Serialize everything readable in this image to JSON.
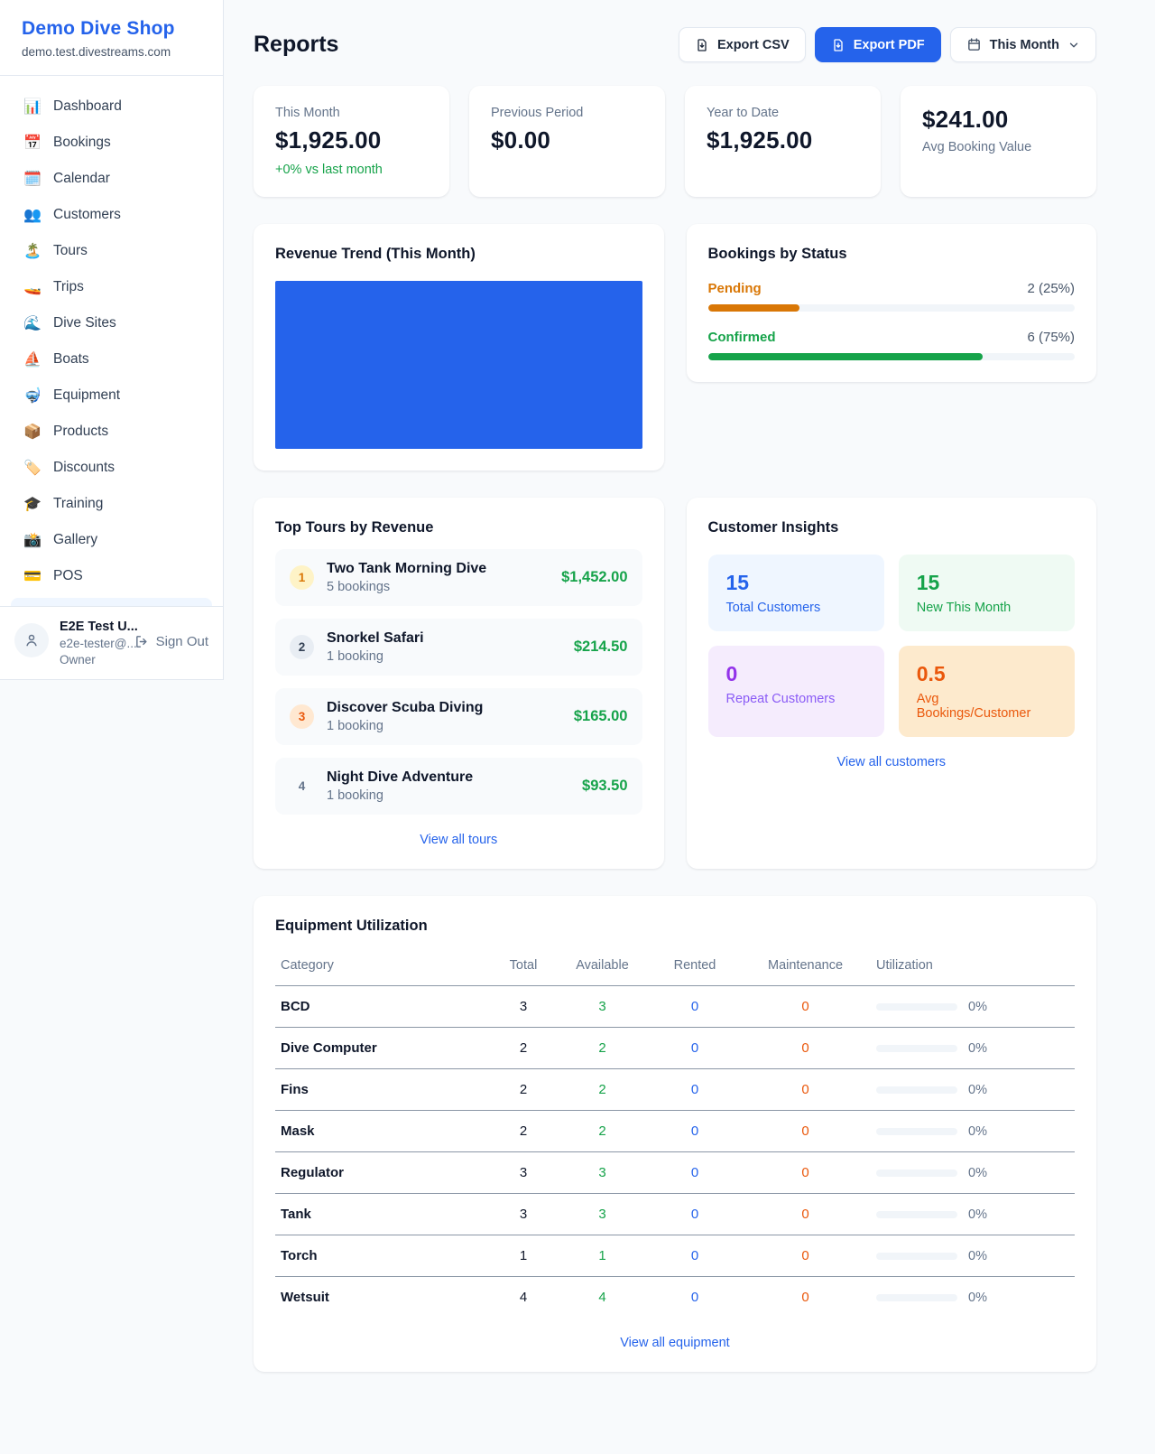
{
  "colors": {
    "accent_blue": "#2563eb",
    "green": "#16a34a",
    "orange_pending": "#d97706",
    "orange_deep": "#ea580c",
    "purple": "#9333ea",
    "page_bg": "#f8fafc"
  },
  "app": {
    "name": "Demo Dive Shop",
    "domain": "demo.test.divestreams.com"
  },
  "sidebar": {
    "items": [
      {
        "label": "Dashboard",
        "icon": "bar-chart-icon",
        "glyph": "📊"
      },
      {
        "label": "Bookings",
        "icon": "calendar-17-icon",
        "glyph": "📅"
      },
      {
        "label": "Calendar",
        "icon": "notepad-icon",
        "glyph": "🗓️"
      },
      {
        "label": "Customers",
        "icon": "people-icon",
        "glyph": "👥"
      },
      {
        "label": "Tours",
        "icon": "island-icon",
        "glyph": "🏝️"
      },
      {
        "label": "Trips",
        "icon": "speedboat-icon",
        "glyph": "🚤"
      },
      {
        "label": "Dive Sites",
        "icon": "wave-icon",
        "glyph": "🌊"
      },
      {
        "label": "Boats",
        "icon": "sailboat-icon",
        "glyph": "⛵"
      },
      {
        "label": "Equipment",
        "icon": "dive-mask-icon",
        "glyph": "🤿"
      },
      {
        "label": "Products",
        "icon": "package-icon",
        "glyph": "📦"
      },
      {
        "label": "Discounts",
        "icon": "tag-icon",
        "glyph": "🏷️"
      },
      {
        "label": "Training",
        "icon": "grad-cap-icon",
        "glyph": "🎓"
      },
      {
        "label": "Gallery",
        "icon": "camera-icon",
        "glyph": "📸"
      },
      {
        "label": "POS",
        "icon": "credit-card-icon",
        "glyph": "💳"
      }
    ],
    "user": {
      "name": "E2E Test U...",
      "email": "e2e-tester@...",
      "role": "Owner",
      "sign_out": "Sign Out"
    }
  },
  "header": {
    "title": "Reports",
    "export_csv": "Export CSV",
    "export_pdf": "Export PDF",
    "period": "This Month"
  },
  "stats": [
    {
      "label": "This Month",
      "value": "$1,925.00",
      "delta": "+0% vs last month"
    },
    {
      "label": "Previous Period",
      "value": "$0.00"
    },
    {
      "label": "Year to Date",
      "value": "$1,925.00"
    },
    {
      "label": "Avg Booking Value",
      "value": "$241.00"
    }
  ],
  "revenue_trend": {
    "title": "Revenue Trend (This Month)"
  },
  "chart_data": {
    "type": "bar",
    "title": "Revenue Trend (This Month)",
    "note": "Chart area renders as a solid filled blue block (single full-width bar), no visible axes or labels",
    "categories": [
      "This Month"
    ],
    "values": [
      1925
    ],
    "color": "#2563eb"
  },
  "bookings_status": {
    "title": "Bookings by Status",
    "rows": [
      {
        "label": "Pending",
        "count_text": "2 (25%)",
        "pct": 25,
        "color": "#d97706"
      },
      {
        "label": "Confirmed",
        "count_text": "6 (75%)",
        "pct": 75,
        "color": "#16a34a"
      }
    ]
  },
  "top_tours": {
    "title": "Top Tours by Revenue",
    "rows": [
      {
        "rank": "1",
        "name": "Two Tank Morning Dive",
        "bookings": "5 bookings",
        "amount": "$1,452.00"
      },
      {
        "rank": "2",
        "name": "Snorkel Safari",
        "bookings": "1 booking",
        "amount": "$214.50"
      },
      {
        "rank": "3",
        "name": "Discover Scuba Diving",
        "bookings": "1 booking",
        "amount": "$165.00"
      },
      {
        "rank": "4",
        "name": "Night Dive Adventure",
        "bookings": "1 booking",
        "amount": "$93.50"
      }
    ],
    "view_all": "View all tours"
  },
  "customer_insights": {
    "title": "Customer Insights",
    "tiles": [
      {
        "value": "15",
        "label": "Total Customers"
      },
      {
        "value": "15",
        "label": "New This Month"
      },
      {
        "value": "0",
        "label": "Repeat Customers"
      },
      {
        "value": "0.5",
        "label": "Avg Bookings/Customer"
      }
    ],
    "view_all": "View all customers"
  },
  "equipment": {
    "title": "Equipment Utilization",
    "columns": [
      "Category",
      "Total",
      "Available",
      "Rented",
      "Maintenance",
      "Utilization"
    ],
    "rows": [
      {
        "category": "BCD",
        "total": "3",
        "available": "3",
        "rented": "0",
        "maintenance": "0",
        "utilization": "0%"
      },
      {
        "category": "Dive Computer",
        "total": "2",
        "available": "2",
        "rented": "0",
        "maintenance": "0",
        "utilization": "0%"
      },
      {
        "category": "Fins",
        "total": "2",
        "available": "2",
        "rented": "0",
        "maintenance": "0",
        "utilization": "0%"
      },
      {
        "category": "Mask",
        "total": "2",
        "available": "2",
        "rented": "0",
        "maintenance": "0",
        "utilization": "0%"
      },
      {
        "category": "Regulator",
        "total": "3",
        "available": "3",
        "rented": "0",
        "maintenance": "0",
        "utilization": "0%"
      },
      {
        "category": "Tank",
        "total": "3",
        "available": "3",
        "rented": "0",
        "maintenance": "0",
        "utilization": "0%"
      },
      {
        "category": "Torch",
        "total": "1",
        "available": "1",
        "rented": "0",
        "maintenance": "0",
        "utilization": "0%"
      },
      {
        "category": "Wetsuit",
        "total": "4",
        "available": "4",
        "rented": "0",
        "maintenance": "0",
        "utilization": "0%"
      }
    ],
    "view_all": "View all equipment"
  }
}
